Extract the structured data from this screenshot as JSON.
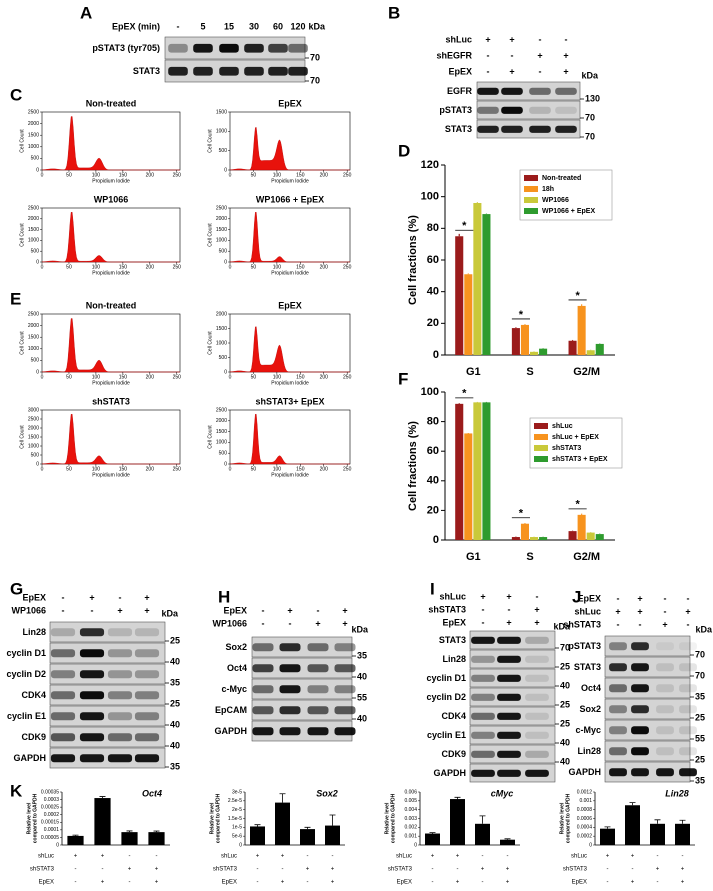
{
  "panel_labels": [
    "A",
    "B",
    "C",
    "D",
    "E",
    "F",
    "G",
    "H",
    "I",
    "J",
    "K"
  ],
  "blots": [
    {
      "conditions": [
        {
          "name": "EpEX (min)",
          "signs": [
            "-",
            "5",
            "15",
            "30",
            "60",
            "120"
          ]
        }
      ],
      "kda": "kDa",
      "rows": [
        "pSTAT3 (tyr705)",
        "STAT3"
      ],
      "markers": [
        "70",
        "70"
      ]
    },
    {
      "conditions": [
        {
          "name": "shLuc",
          "signs": [
            "+",
            "+",
            "-",
            "-"
          ]
        },
        {
          "name": "shEGFR",
          "signs": [
            "-",
            "-",
            "+",
            "+"
          ]
        },
        {
          "name": "EpEX",
          "signs": [
            "-",
            "+",
            "-",
            "+"
          ]
        }
      ],
      "kda": "kDa",
      "rows": [
        "EGFR",
        "pSTAT3",
        "STAT3"
      ],
      "markers": [
        "130",
        "70",
        "70"
      ]
    },
    {
      "conditions": [
        {
          "name": "EpEX",
          "signs": [
            "-",
            "+",
            "-",
            "+"
          ]
        },
        {
          "name": "WP1066",
          "signs": [
            "-",
            "-",
            "+",
            "+"
          ]
        }
      ],
      "kda": "kDa",
      "rows": [
        "Lin28",
        "cyclin D1",
        "cyclin D2",
        "CDK4",
        "cyclin E1",
        "CDK9",
        "GAPDH"
      ],
      "markers": [
        "25",
        "40",
        "35",
        "25",
        "40",
        "40",
        "35"
      ]
    },
    {
      "conditions": [
        {
          "name": "EpEX",
          "signs": [
            "-",
            "+",
            "-",
            "+"
          ]
        },
        {
          "name": "WP1066",
          "signs": [
            "-",
            "-",
            "+",
            "+"
          ]
        }
      ],
      "kda": "kDa",
      "rows": [
        "Sox2",
        "Oct4",
        "c-Myc",
        "EpCAM",
        "GAPDH"
      ],
      "markers": [
        "35",
        "40",
        "55",
        "40",
        null
      ]
    },
    {
      "conditions": [
        {
          "name": "shLuc",
          "signs": [
            "+",
            "+",
            "-"
          ]
        },
        {
          "name": "shSTAT3",
          "signs": [
            "-",
            "-",
            "+"
          ]
        },
        {
          "name": "EpEX",
          "signs": [
            "-",
            "+",
            "+"
          ]
        }
      ],
      "kda": "kDa",
      "rows": [
        "STAT3",
        "Lin28",
        "cyclin D1",
        "cyclin D2",
        "CDK4",
        "cyclin E1",
        "CDK9",
        "GAPDH"
      ],
      "markers": [
        "70",
        "25",
        "40",
        "25",
        "25",
        "40",
        "40",
        null
      ]
    },
    {
      "conditions": [
        {
          "name": "EpEX",
          "signs": [
            "-",
            "+",
            "-",
            "-"
          ]
        },
        {
          "name": "shLuc",
          "signs": [
            "+",
            "+",
            "-",
            "+"
          ]
        },
        {
          "name": "shSTAT3",
          "signs": [
            "-",
            "-",
            "+",
            "-"
          ]
        }
      ],
      "kda": "kDa",
      "rows": [
        "pSTAT3",
        "STAT3",
        "Oct4",
        "Sox2",
        "c-Myc",
        "Lin28",
        "GAPDH"
      ],
      "markers": [
        "70",
        "70",
        "35",
        "25",
        "55",
        "25",
        "35"
      ]
    }
  ],
  "flow_cytometry": {
    "xlabel": "Propidium Iodide",
    "ylabel": "Cell Count",
    "xlim": [
      0,
      256
    ],
    "xticks": [
      0,
      50,
      100,
      150,
      200,
      250
    ],
    "plots": [
      {
        "title": "Non-treated",
        "ylim": [
          0,
          2500
        ],
        "yticks": [
          0,
          500,
          1000,
          1500,
          2000,
          2500
        ]
      },
      {
        "title": "EpEX",
        "ylim": [
          0,
          1500
        ],
        "yticks": [
          0,
          500,
          1000,
          1500
        ]
      },
      {
        "title": "WP1066",
        "ylim": [
          0,
          2500
        ],
        "yticks": [
          0,
          500,
          1000,
          1500,
          2000,
          2500
        ]
      },
      {
        "title": "WP1066 + EpEX",
        "ylim": [
          0,
          2500
        ],
        "yticks": [
          0,
          500,
          1000,
          1500,
          2000,
          2500
        ]
      },
      {
        "title": "Non-treated",
        "ylim": [
          0,
          2500
        ],
        "yticks": [
          0,
          500,
          1000,
          1500,
          2000,
          2500
        ]
      },
      {
        "title": "EpEX",
        "ylim": [
          0,
          2000
        ],
        "yticks": [
          0,
          500,
          1000,
          1500,
          2000
        ]
      },
      {
        "title": "shSTAT3",
        "ylim": [
          0,
          3000
        ],
        "yticks": [
          0,
          500,
          1000,
          1500,
          2000,
          2500,
          3000
        ]
      },
      {
        "title": "shSTAT3+ EpEX",
        "ylim": [
          0,
          2500
        ],
        "yticks": [
          0,
          500,
          1000,
          1500,
          2000,
          2500
        ]
      }
    ]
  },
  "chart_data": [
    {
      "type": "bar",
      "ylabel": "Cell fractions (%)",
      "categories": [
        "G1",
        "S",
        "G2/M"
      ],
      "ylim": [
        0,
        120
      ],
      "yticks": [
        0,
        20,
        40,
        60,
        80,
        100,
        120
      ],
      "legend": "top-right",
      "series": [
        {
          "name": "Non-treated",
          "color": "#9b1b1b",
          "values": [
            75,
            17,
            9
          ],
          "errors": [
            1.5,
            0.5,
            0.5
          ]
        },
        {
          "name": "18h",
          "color": "#f7931e",
          "values": [
            51,
            19,
            31
          ],
          "errors": [
            0.5,
            0.5,
            1
          ]
        },
        {
          "name": "WP1066",
          "color": "#c9c93a",
          "values": [
            96,
            2,
            3
          ],
          "errors": [
            0.5,
            0.3,
            0.3
          ]
        },
        {
          "name": "WP1066 + EpEX",
          "color": "#2e9b2e",
          "values": [
            89,
            4,
            7
          ],
          "errors": [
            0.3,
            0.3,
            0.3
          ]
        }
      ],
      "annotations": [
        {
          "text": "*",
          "category": "G1"
        },
        {
          "text": "*",
          "category": "S"
        },
        {
          "text": "*",
          "category": "G2/M"
        }
      ]
    },
    {
      "type": "bar",
      "ylabel": "Cell fractions (%)",
      "categories": [
        "G1",
        "S",
        "G2/M"
      ],
      "ylim": [
        0,
        100
      ],
      "yticks": [
        0,
        20,
        40,
        60,
        80,
        100
      ],
      "legend": "right",
      "series": [
        {
          "name": "shLuc",
          "color": "#9b1b1b",
          "values": [
            92,
            2,
            6
          ],
          "errors": [
            0.5,
            0.3,
            0.3
          ]
        },
        {
          "name": "shLuc + EpEX",
          "color": "#f7931e",
          "values": [
            72,
            11,
            17
          ],
          "errors": [
            0.3,
            0.5,
            0.8
          ]
        },
        {
          "name": "shSTAT3",
          "color": "#c9c93a",
          "values": [
            93,
            2,
            5
          ],
          "errors": [
            0.3,
            0.2,
            0.3
          ]
        },
        {
          "name": "shSTAT3 + EpEX",
          "color": "#2e9b2e",
          "values": [
            93,
            2,
            4
          ],
          "errors": [
            0.3,
            0.2,
            0.3
          ]
        }
      ],
      "annotations": [
        {
          "text": "*",
          "category": "G1"
        },
        {
          "text": "*",
          "category": "S"
        },
        {
          "text": "*",
          "category": "G2/M"
        }
      ]
    },
    {
      "type": "column",
      "title": "Oct4",
      "ylabel": [
        "Relative level",
        "compared to GAPDH"
      ],
      "color": "#000000",
      "values": [
        6e-05,
        0.00031,
        8.5e-05,
        8.5e-05
      ],
      "errors": [
        5e-06,
        1e-05,
        8e-06,
        7e-06
      ],
      "ylim": [
        0,
        0.00035
      ],
      "yticks": [
        0,
        5e-05,
        0.0001,
        0.00015,
        0.0002,
        0.00025,
        0.0003,
        0.00035
      ],
      "conditions": [
        {
          "name": "shLuc",
          "signs": [
            "+",
            "+",
            "-",
            "-"
          ]
        },
        {
          "name": "shSTAT3",
          "signs": [
            "-",
            "-",
            "+",
            "+"
          ]
        },
        {
          "name": "EpEX",
          "signs": [
            "-",
            "+",
            "-",
            "+"
          ]
        }
      ]
    },
    {
      "type": "column",
      "title": "Sox2",
      "ylabel": [
        "Relative level",
        "compared to GAPDH"
      ],
      "color": "#000000",
      "values": [
        1.05e-05,
        2.4e-05,
        9e-06,
        1.1e-05
      ],
      "errors": [
        1e-06,
        5e-06,
        1e-06,
        6e-06
      ],
      "ylim": [
        0,
        3e-05
      ],
      "yticks": [
        0,
        {
          "value": 5e-06,
          "label": "5e-6"
        },
        {
          "value": 1e-05,
          "label": "1e-5"
        },
        {
          "value": 1.5e-05,
          "label": "1.5e-5"
        },
        {
          "value": 2e-05,
          "label": "2e-5"
        },
        {
          "value": 2.5e-05,
          "label": "2.5e-5"
        },
        {
          "value": 3e-05,
          "label": "3e-5"
        }
      ],
      "conditions": [
        {
          "name": "shLuc",
          "signs": [
            "+",
            "+",
            "-",
            "-"
          ]
        },
        {
          "name": "shSTAT3",
          "signs": [
            "-",
            "-",
            "+",
            "+"
          ]
        },
        {
          "name": "EpEX",
          "signs": [
            "-",
            "+",
            "-",
            "+"
          ]
        }
      ]
    },
    {
      "type": "column",
      "title": "cMyc",
      "ylabel": [
        "Relative level",
        "compared to GAPDH"
      ],
      "color": "#000000",
      "values": [
        0.0013,
        0.0052,
        0.0024,
        0.0006
      ],
      "errors": [
        0.0001,
        0.0002,
        0.0009,
        0.0001
      ],
      "ylim": [
        0,
        0.006
      ],
      "yticks": [
        0,
        0.001,
        0.002,
        0.003,
        0.004,
        0.005,
        0.006
      ],
      "conditions": [
        {
          "name": "shLuc",
          "signs": [
            "+",
            "+",
            "-",
            "-"
          ]
        },
        {
          "name": "shSTAT3",
          "signs": [
            "-",
            "-",
            "+",
            "+"
          ]
        },
        {
          "name": "EpEX",
          "signs": [
            "-",
            "+",
            "-",
            "+"
          ]
        }
      ]
    },
    {
      "type": "column",
      "title": "Lin28",
      "ylabel": [
        "Relative level",
        "compared to GAPDH"
      ],
      "color": "#000000",
      "values": [
        0.00037,
        0.0009,
        0.00048,
        0.00048
      ],
      "errors": [
        4e-05,
        6e-05,
        9e-05,
        8e-05
      ],
      "ylim": [
        0,
        0.0012
      ],
      "yticks": [
        0,
        0.0002,
        0.0004,
        0.0006,
        0.0008,
        0.001,
        0.0012
      ],
      "conditions": [
        {
          "name": "shLuc",
          "signs": [
            "+",
            "+",
            "-",
            "-"
          ]
        },
        {
          "name": "shSTAT3",
          "signs": [
            "-",
            "-",
            "+",
            "+"
          ]
        },
        {
          "name": "EpEX",
          "signs": [
            "-",
            "+",
            "-",
            "+"
          ]
        }
      ]
    }
  ]
}
